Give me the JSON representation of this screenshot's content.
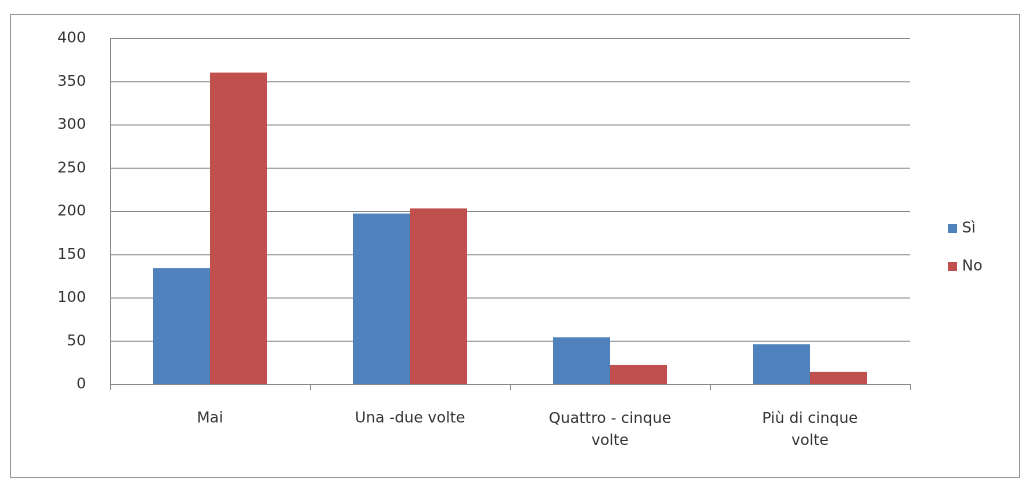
{
  "chart_data": {
    "type": "bar",
    "categories": [
      "Mai",
      "Una -due volte",
      "Quattro - cinque volte",
      "Più di cinque volte"
    ],
    "series": [
      {
        "name": "Sì",
        "color": "#4f81bd",
        "values": [
          134,
          197,
          54,
          46
        ]
      },
      {
        "name": "No",
        "color": "#c0504d",
        "values": [
          360,
          203,
          22,
          14
        ]
      }
    ],
    "ylim": [
      0,
      400
    ],
    "yticks": [
      0,
      50,
      100,
      150,
      200,
      250,
      300,
      350,
      400
    ],
    "grid": true,
    "legend": "right"
  }
}
